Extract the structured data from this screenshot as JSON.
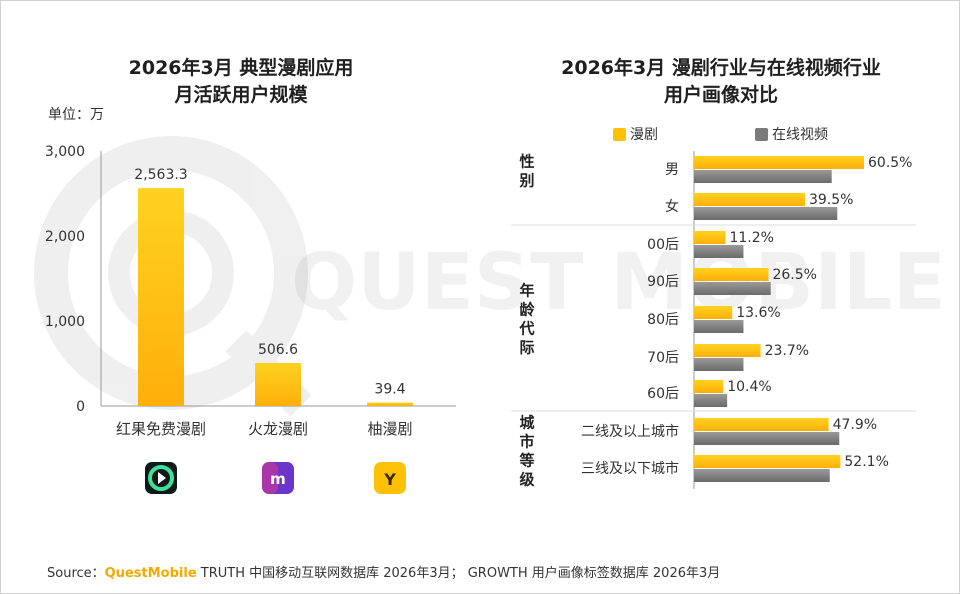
{
  "left_chart": {
    "title_line1": "2026年3月 典型漫剧应用",
    "title_line2": "月活跃用户规模",
    "unit": "单位：万"
  },
  "right_chart": {
    "title_line1": "2026年3月 漫剧行业与在线视频行业",
    "title_line2": "用户画像对比",
    "legend": [
      "漫剧",
      "在线视频"
    ],
    "groups": [
      {
        "label": "性别",
        "rows": [
          "男",
          "女"
        ]
      },
      {
        "label": "年龄代际",
        "rows": [
          "00后",
          "90后",
          "80后",
          "70后",
          "60后"
        ]
      },
      {
        "label": "城市等级",
        "rows": [
          "二线及以上城市",
          "三线及以下城市"
        ]
      }
    ]
  },
  "source": {
    "prefix": "Source：",
    "brand": "QuestMobile",
    "text": " TRUTH 中国移动互联网数据库 2026年3月； GROWTH 用户画像标签数据库 2026年3月"
  },
  "watermark": "QUEST MOBILE",
  "colors": {
    "gold_top": "#FFD21F",
    "gold_bottom": "#FFAF0A",
    "gray_top": "#9A9A9A",
    "gray_bottom": "#6A6A6A",
    "brand": "#F4A900"
  },
  "chart_data": [
    {
      "type": "bar",
      "title": "2026年3月 典型漫剧应用 月活跃用户规模",
      "ylabel": "单位：万",
      "categories": [
        "红果免费漫剧",
        "火龙漫剧",
        "柚漫剧"
      ],
      "values": [
        2563.3,
        506.6,
        39.4
      ],
      "value_labels": [
        "2,563.3",
        "506.6",
        "39.4"
      ],
      "yticks": [
        "0",
        "1,000",
        "2,000",
        "3,000"
      ],
      "ylim": [
        0,
        3000
      ],
      "icons": [
        "hongguo-app-icon",
        "huolong-app-icon",
        "youman-app-icon"
      ]
    },
    {
      "type": "bar",
      "orientation": "horizontal",
      "title": "2026年3月 漫剧行业与在线视频行业 用户画像对比",
      "categories": [
        "男",
        "女",
        "00后",
        "90后",
        "80后",
        "70后",
        "60后",
        "二线及以上城市",
        "三线及以下城市"
      ],
      "series": [
        {
          "name": "漫剧",
          "values": [
            60.5,
            39.5,
            11.2,
            26.5,
            13.6,
            23.7,
            10.4,
            47.9,
            52.1
          ],
          "labels": [
            "60.5%",
            "39.5%",
            "11.2%",
            "26.5%",
            "13.6%",
            "23.7%",
            "10.4%",
            "47.9%",
            "52.1%"
          ]
        },
        {
          "name": "在线视频",
          "values": [
            49,
            51,
            17.6,
            27.3,
            17.6,
            17.6,
            11.8,
            51.7,
            48.3
          ]
        }
      ],
      "xlim": [
        0,
        60.5
      ],
      "legend_position": "top"
    }
  ]
}
